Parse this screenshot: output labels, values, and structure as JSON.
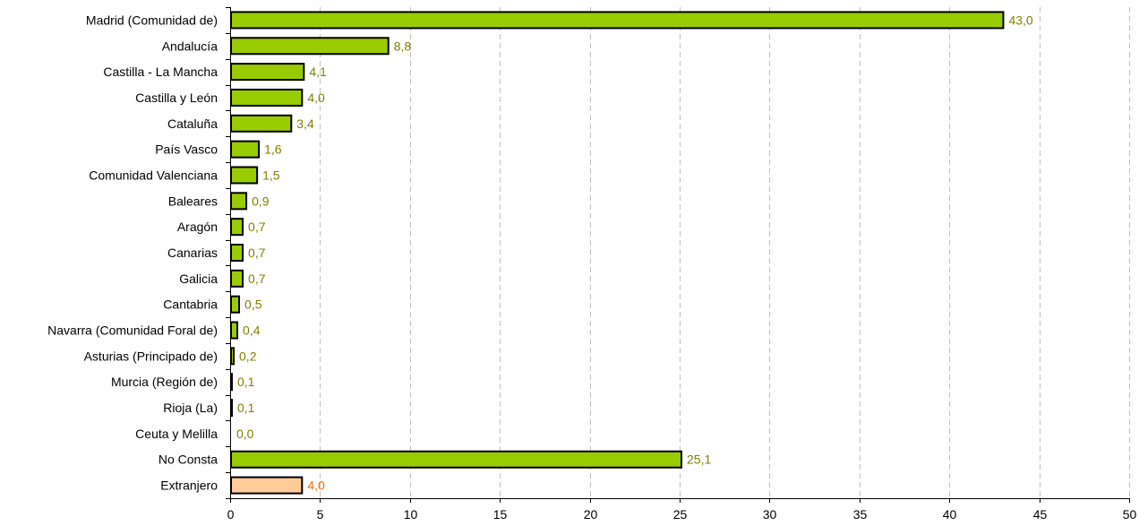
{
  "chart_data": {
    "type": "bar",
    "orientation": "horizontal",
    "title": "",
    "xlabel": "",
    "ylabel": "",
    "xlim": [
      0,
      50
    ],
    "xticks": [
      0,
      5,
      10,
      15,
      20,
      25,
      30,
      35,
      40,
      45,
      50
    ],
    "grid": "vertical dashed",
    "categories": [
      "Madrid (Comunidad de)",
      "Andalucía",
      "Castilla - La Mancha",
      "Castilla y León",
      "Cataluña",
      "País Vasco",
      "Comunidad Valenciana",
      "Baleares",
      "Aragón",
      "Canarias",
      "Galicia",
      "Cantabria",
      "Navarra (Comunidad Foral de)",
      "Asturias (Principado de)",
      "Murcia (Región de)",
      "Rioja (La)",
      "Ceuta y Melilla",
      "No Consta",
      "Extranjero"
    ],
    "values": [
      43.0,
      8.8,
      4.1,
      4.0,
      3.4,
      1.6,
      1.5,
      0.9,
      0.7,
      0.7,
      0.7,
      0.5,
      0.4,
      0.2,
      0.1,
      0.1,
      0.0,
      25.1,
      4.0
    ],
    "value_labels": [
      "43,0",
      "8,8",
      "4,1",
      "4,0",
      "3,4",
      "1,6",
      "1,5",
      "0,9",
      "0,7",
      "0,7",
      "0,7",
      "0,5",
      "0,4",
      "0,2",
      "0,1",
      "0,1",
      "0,0",
      "25,1",
      "4,0"
    ],
    "colors": {
      "default_bar": "#99cc00",
      "highlight_bar": "#ffcc99",
      "default_label": "#808000",
      "highlight_label": "#ff6600"
    },
    "highlight_index": 18
  }
}
